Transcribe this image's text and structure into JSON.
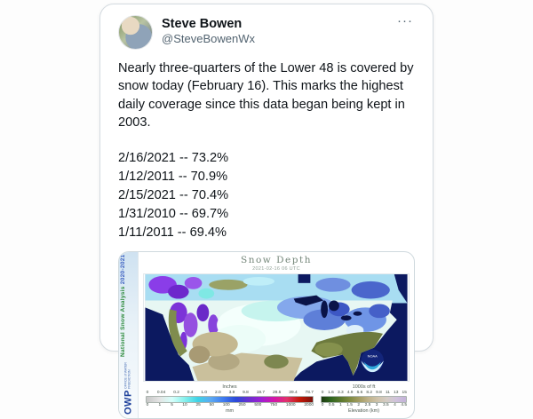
{
  "tweet": {
    "author_name": "Steve Bowen",
    "author_handle": "@SteveBowenWx",
    "more_label": "···",
    "body": "Nearly three-quarters of the Lower 48 is covered by snow today (February 16). This marks the highest daily coverage since this data began being kept in 2003.",
    "stats": [
      "2/16/2021 -- 73.2%",
      "1/12/2011 -- 70.9%",
      "2/15/2021 -- 70.4%",
      "1/31/2010 -- 69.7%",
      "1/11/2011 -- 69.4%"
    ]
  },
  "map": {
    "banner_title": "National Snow Analysis",
    "banner_season": "2020-2021",
    "org_abbrev": "OWP",
    "org_name": "OFFICE of WATER PREDICTION",
    "title": "Snow Depth",
    "timestamp": "2021-02-16 06 UTC",
    "noaa_label": "NOAA",
    "snow_legend": {
      "unit_top": "Inches",
      "ticks_top": [
        "0",
        "0.04",
        "0.2",
        "0.4",
        "1.0",
        "2.0",
        "3.9",
        "9.8",
        "19.7",
        "29.5",
        "39.4",
        "78.7"
      ],
      "ticks_bottom": [
        "0",
        "1",
        "5",
        "10",
        "25",
        "50",
        "100",
        "250",
        "500",
        "750",
        "1000",
        "2000"
      ],
      "unit_bottom": "mm",
      "gradient": [
        "#c7c7c7",
        "#e4e4e4",
        "#d6fffb",
        "#86f0ec",
        "#3ed3e6",
        "#5caaf2",
        "#3f7cf0",
        "#2a49d8",
        "#6a2fd0",
        "#a020d2",
        "#d415a8",
        "#e0336a",
        "#c21807",
        "#7c120c"
      ]
    },
    "elev_legend": {
      "unit_top": "1000s of ft",
      "ticks_top": [
        "0",
        "1.6",
        "3.3",
        "4.9",
        "6.6",
        "8.2",
        "9.8",
        "11",
        "13",
        "15"
      ],
      "ticks_bottom": [
        "0",
        "0.5",
        "1",
        "1.5",
        "2",
        "2.5",
        "3",
        "3.5",
        "4",
        "4.5"
      ],
      "unit_bottom": "Elevation (km)",
      "gradient": [
        "#1c3a10",
        "#2e651d",
        "#57762c",
        "#7e8a40",
        "#a39c62",
        "#bfb28a",
        "#cfc3ab",
        "#d4ccc6",
        "#cfc2dc",
        "#c3b2d8"
      ]
    },
    "colors": {
      "ocean": "#0c1960",
      "snow_light": "#e7f7f3",
      "mountain_purple": "#7c33d8",
      "bare_ground_olive": "#6d7a3e",
      "bare_ground_tan": "#cac09c"
    }
  }
}
